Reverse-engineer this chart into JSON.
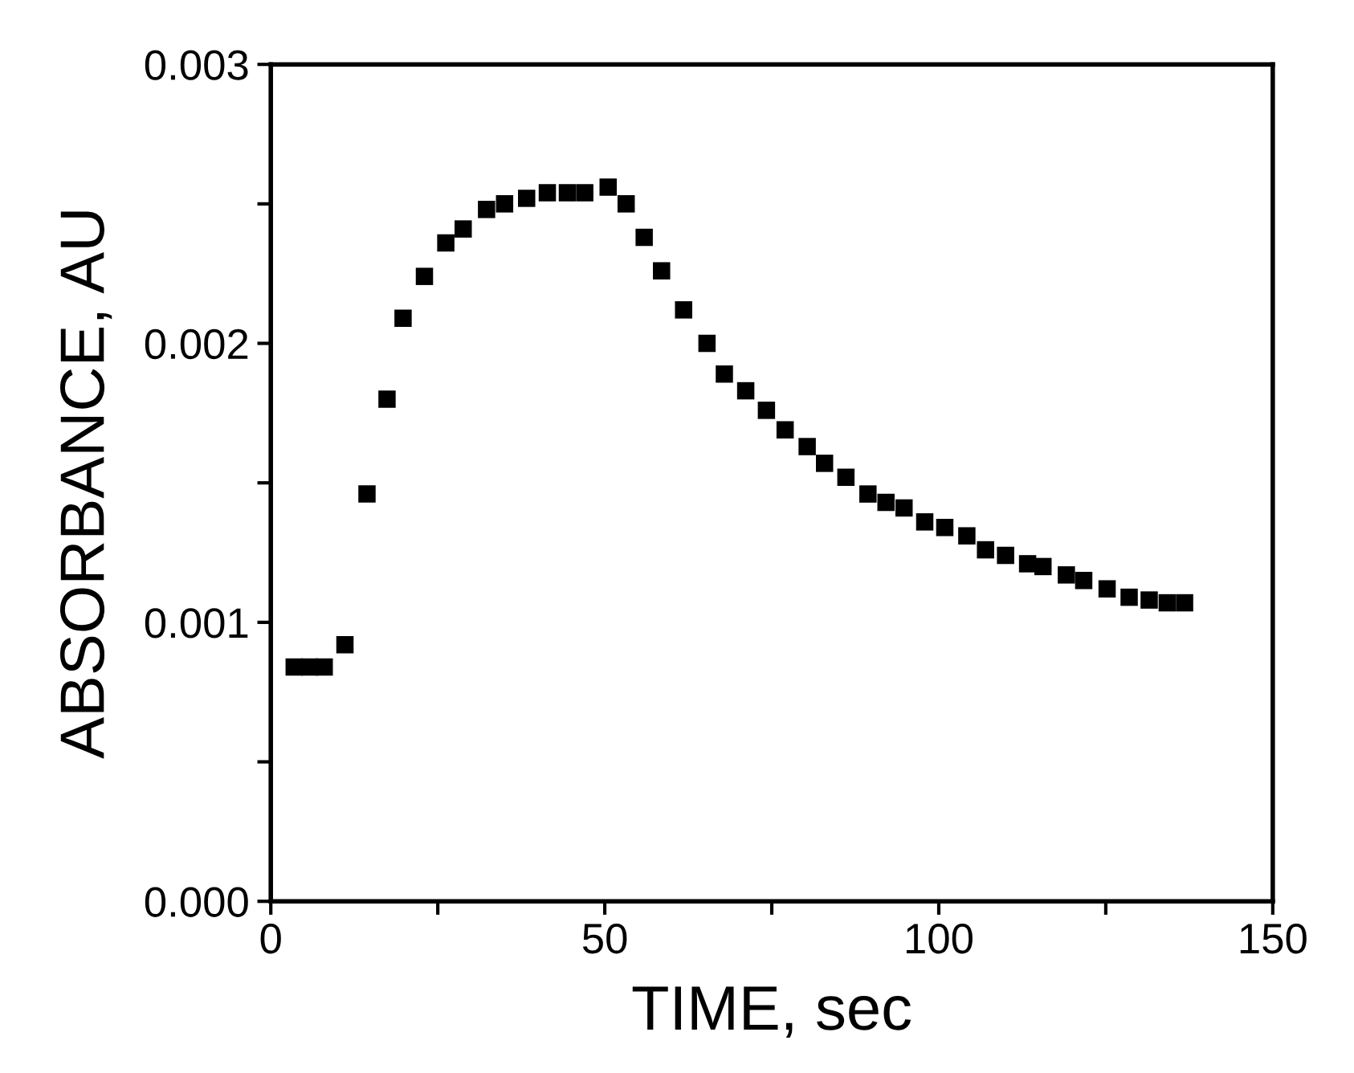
{
  "chart_data": {
    "type": "scatter",
    "xlabel": "TIME, sec",
    "ylabel": "ABSORBANCE, AU",
    "x": [
      3.5,
      5.8,
      8.0,
      11.1,
      14.4,
      17.4,
      19.8,
      23.0,
      26.2,
      28.8,
      32.3,
      35.0,
      38.3,
      41.4,
      44.4,
      47.0,
      50.5,
      53.2,
      55.9,
      58.5,
      61.8,
      65.3,
      67.9,
      71.1,
      74.2,
      77.0,
      80.3,
      82.9,
      86.1,
      89.4,
      92.1,
      94.8,
      97.9,
      100.9,
      104.2,
      107.0,
      110.0,
      113.3,
      115.6,
      119.1,
      121.7,
      125.2,
      128.5,
      131.5,
      134.2,
      136.8
    ],
    "series": [
      {
        "color": "#000000",
        "values": [
          0.00084,
          0.00084,
          0.00084,
          0.00092,
          0.00146,
          0.0018,
          0.00209,
          0.00224,
          0.00236,
          0.00241,
          0.00248,
          0.0025,
          0.00252,
          0.00254,
          0.00254,
          0.00254,
          0.00256,
          0.0025,
          0.00238,
          0.00226,
          0.00212,
          0.002,
          0.00189,
          0.00183,
          0.00176,
          0.00169,
          0.00163,
          0.00157,
          0.00152,
          0.00146,
          0.00143,
          0.00141,
          0.00136,
          0.00134,
          0.00131,
          0.00126,
          0.00124,
          0.00121,
          0.0012,
          0.00117,
          0.00115,
          0.00112,
          0.00109,
          0.00108,
          0.00107,
          0.00107
        ]
      }
    ],
    "xlim": [
      0,
      150
    ],
    "xticks": [
      0,
      {
        "value": 25,
        "label": null
      },
      50,
      {
        "value": 75,
        "label": null
      },
      100,
      {
        "value": 125,
        "label": null
      },
      150
    ],
    "ylim": [
      0,
      0.003
    ],
    "yticks": [
      {
        "value": 0,
        "label": "0.000"
      },
      {
        "value": 0.0005,
        "label": null
      },
      {
        "value": 0.001,
        "label": "0.001"
      },
      {
        "value": 0.0015,
        "label": null
      },
      {
        "value": 0.002,
        "label": "0.002"
      },
      {
        "value": 0.0025,
        "label": null
      },
      {
        "value": 0.003,
        "label": "0.003"
      }
    ],
    "marker": "square",
    "grid": false,
    "legend": false
  }
}
